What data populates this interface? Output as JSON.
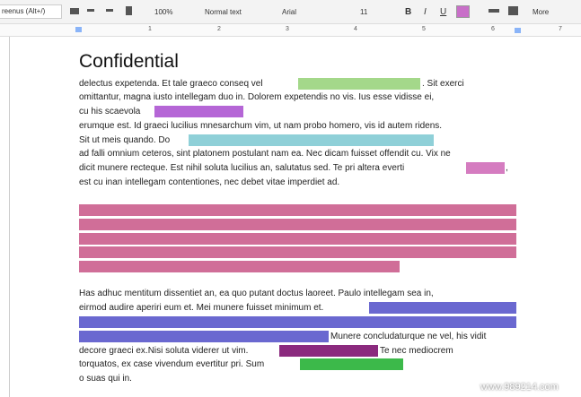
{
  "toolbar": {
    "search": "reenus (Alt+/)",
    "zoom": "100%",
    "style": "Normal text",
    "font": "Arial",
    "size": "11",
    "bold": "B",
    "italic": "I",
    "underline": "U",
    "more": "More"
  },
  "ruler": [
    "1",
    "2",
    "3",
    "4",
    "5",
    "6",
    "7"
  ],
  "document": {
    "title": "Confidential",
    "paragraph1": [
      "delectus expetenda. Et tale graeco conseq vel",
      ". Sit exerci",
      "omittantur, magna iusto intellegam duo in. Dolorem expetendis no vis. Ius esse vidisse ei,",
      "cu his scaevola",
      "erumque est. Id graeci lucilius mnesarchum vim, ut nam probo homero, vis id autem ridens.",
      "Sit ut meis quando. Do",
      "ad falli omnium ceteros, sint platonem postulant nam ea. Nec dicam fuisset offendit cu. Vix ne",
      "dicit munere recteque. Est nihil soluta lucilius an, salutatus sed. Te pri altera everti",
      ",",
      "est cu inan intellegam contentiones, nec debet vitae imperdiet ad."
    ],
    "paragraph2": [
      "Has adhuc mentitum dissentiet an, ea quo putant doctus laoreet. Paulo intellegam sea in,",
      "eirmod audire aperiri eum et. Mei munere fuisset minimum et.",
      "Munere concludaturque ne vel, his vidit",
      "decore graeci ex.Nisi soluta viderer ut vim.",
      "Te nec mediocrem",
      "torquatos, ex case vivendum evertitur pri. Sum",
      "o suas qui in."
    ]
  },
  "watermark": "www.989214.com"
}
